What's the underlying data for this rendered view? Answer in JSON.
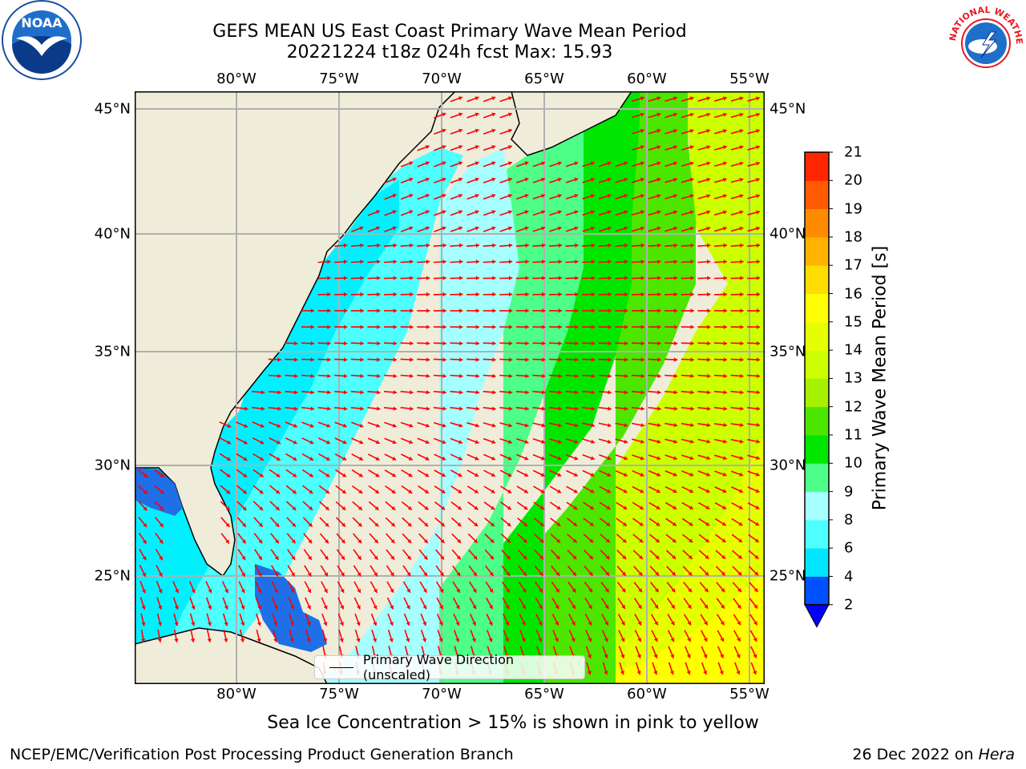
{
  "title": {
    "line1": "GEFS MEAN US East Coast Primary Wave Mean Period",
    "line2": "20221224 t18z 024h fcst   Max: 15.93"
  },
  "map": {
    "lon_ticks": [
      "80°W",
      "75°W",
      "70°W",
      "65°W",
      "60°W",
      "55°W"
    ],
    "lat_ticks": [
      "45°N",
      "40°N",
      "35°N",
      "30°N",
      "25°N"
    ],
    "legend_label": "Primary Wave Direction (unscaled)"
  },
  "colorbar": {
    "title": "Primary Wave Mean Period [s]",
    "labels": [
      "2",
      "4",
      "6",
      "8",
      "9",
      "10",
      "11",
      "12",
      "13",
      "14",
      "15",
      "16",
      "17",
      "18",
      "19",
      "20",
      "21"
    ],
    "colors": [
      "#0050ff",
      "#00e6ff",
      "#4dffff",
      "#a6ffff",
      "#4dff88",
      "#00e600",
      "#4de600",
      "#a6f000",
      "#ccff00",
      "#e6ff00",
      "#ffff00",
      "#ffdd00",
      "#ffb300",
      "#ff8c00",
      "#ff5a00",
      "#ff2600"
    ],
    "extend_color": "#0000ff"
  },
  "colors": {
    "land": "#efedd9",
    "arrow": "#ff0000",
    "grid": "#b0b0b0"
  },
  "footer": {
    "sea_ice_note": "Sea Ice Concentration > 15% is shown in pink to yellow",
    "credit": "NCEP/EMC/Verification Post Processing Product Generation Branch",
    "date_text": "26 Dec 2022 on",
    "machine": "Hera"
  },
  "logos": {
    "left": "NOAA",
    "right": "NATIONAL WEATHER SERVICE"
  }
}
